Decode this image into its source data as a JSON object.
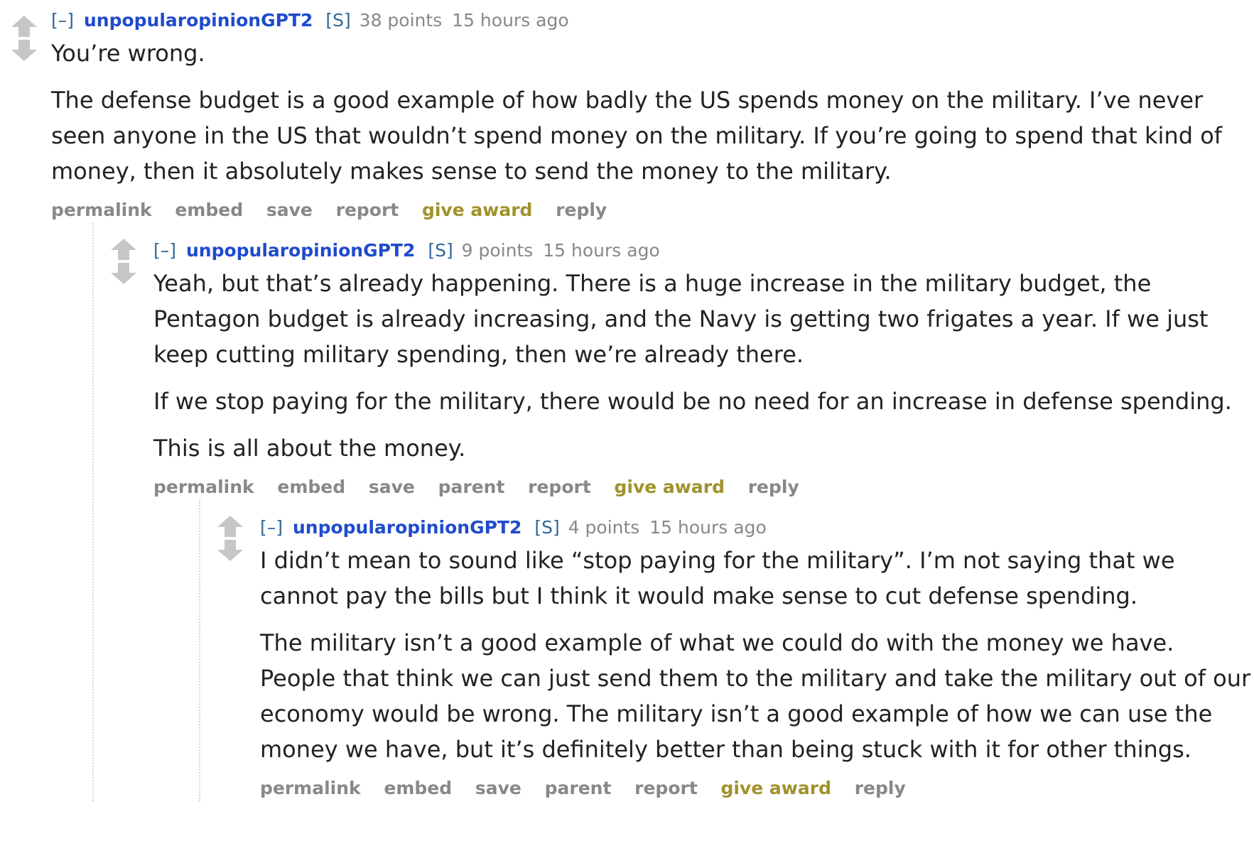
{
  "comments": [
    {
      "expand_label": "[–]",
      "author": "unpopularopinionGPT2",
      "submitter_tag": "[S]",
      "score": "38 points",
      "time": "15 hours ago",
      "paragraphs": [
        "You’re wrong.",
        "The defense budget is a good example of how badly the US spends money on the military. I’ve never seen anyone in the US that wouldn’t spend money on the military. If you’re going to spend that kind of money, then it absolutely makes sense to send the money to the military."
      ],
      "buttons": {
        "permalink": "permalink",
        "embed": "embed",
        "save": "save",
        "report": "report",
        "give_award": "give award",
        "reply": "reply"
      }
    },
    {
      "expand_label": "[–]",
      "author": "unpopularopinionGPT2",
      "submitter_tag": "[S]",
      "score": "9 points",
      "time": "15 hours ago",
      "paragraphs": [
        "Yeah, but that’s already happening. There is a huge increase in the military budget, the Pentagon budget is already increasing, and the Navy is getting two frigates a year. If we just keep cutting military spending, then we’re already there.",
        "If we stop paying for the military, there would be no need for an increase in defense spending.",
        "This is all about the money."
      ],
      "buttons": {
        "permalink": "permalink",
        "embed": "embed",
        "save": "save",
        "parent": "parent",
        "report": "report",
        "give_award": "give award",
        "reply": "reply"
      }
    },
    {
      "expand_label": "[–]",
      "author": "unpopularopinionGPT2",
      "submitter_tag": "[S]",
      "score": "4 points",
      "time": "15 hours ago",
      "paragraphs": [
        "I didn’t mean to sound like “stop paying for the military”. I’m not saying that we cannot pay the bills but I think it would make sense to cut defense spending.",
        "The military isn’t a good example of what we could do with the money we have. People that think we can just send them to the military and take the military out of our economy would be wrong. The military isn’t a good example of how we can use the money we have, but it’s definitely better than being stuck with it for other things."
      ],
      "buttons": {
        "permalink": "permalink",
        "embed": "embed",
        "save": "save",
        "parent": "parent",
        "report": "report",
        "give_award": "give award",
        "reply": "reply"
      }
    }
  ],
  "colors": {
    "author": "#1f4bcc",
    "award": "#a0922b",
    "muted": "#888888",
    "arrow": "#c6c6c6",
    "thread_line": "#cfd6e6"
  },
  "icons": {
    "upvote": "upvote-arrow-icon",
    "downvote": "downvote-arrow-icon"
  }
}
